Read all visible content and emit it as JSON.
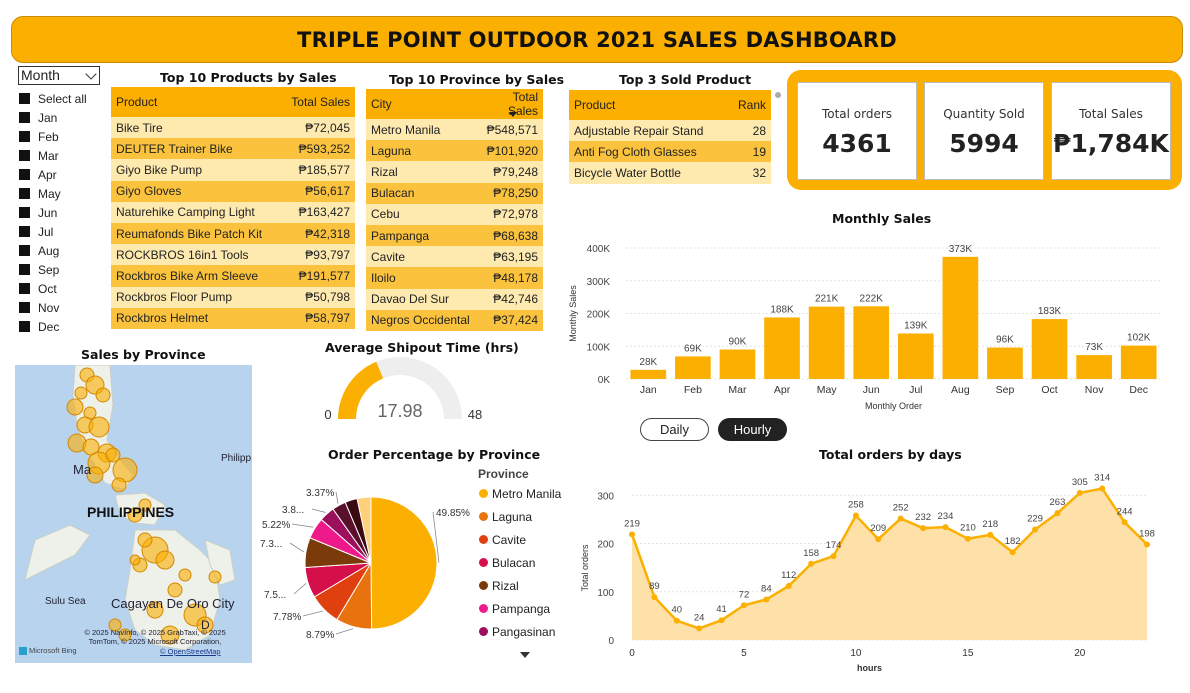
{
  "header": {
    "title": "TRIPLE POINT OUTDOOR 2021 SALES DASHBOARD"
  },
  "slicer": {
    "dropdown_value": "Month",
    "items": [
      "Select all",
      "Jan",
      "Feb",
      "Mar",
      "Apr",
      "May",
      "Jun",
      "Jul",
      "Aug",
      "Sep",
      "Oct",
      "Nov",
      "Dec"
    ]
  },
  "top_products": {
    "title": "Top 10 Products by Sales",
    "col1": "Product",
    "col2": "Total Sales",
    "rows": [
      {
        "name": "Bike Tire",
        "value": "₱72,045"
      },
      {
        "name": "DEUTER Trainer Bike",
        "value": "₱593,252"
      },
      {
        "name": "Giyo Bike Pump",
        "value": "₱185,577"
      },
      {
        "name": "Giyo Gloves",
        "value": "₱56,617"
      },
      {
        "name": "Naturehike Camping Light",
        "value": "₱163,427"
      },
      {
        "name": "Reumafonds Bike Patch Kit",
        "value": "₱42,318"
      },
      {
        "name": "ROCKBROS 16in1 Tools",
        "value": "₱93,797"
      },
      {
        "name": "Rockbros Bike Arm Sleeve",
        "value": "₱191,577"
      },
      {
        "name": "Rockbros Floor Pump",
        "value": "₱50,798"
      },
      {
        "name": "Rockbros Helmet",
        "value": "₱58,797"
      }
    ]
  },
  "top_province": {
    "title": "Top 10 Province by Sales",
    "col1": "City",
    "col2": "Total Sales",
    "rows": [
      {
        "name": "Metro Manila",
        "value": "₱548,571"
      },
      {
        "name": "Laguna",
        "value": "₱101,920"
      },
      {
        "name": "Rizal",
        "value": "₱79,248"
      },
      {
        "name": "Bulacan",
        "value": "₱78,250"
      },
      {
        "name": "Cebu",
        "value": "₱72,978"
      },
      {
        "name": "Pampanga",
        "value": "₱68,638"
      },
      {
        "name": "Cavite",
        "value": "₱63,195"
      },
      {
        "name": "Iloilo",
        "value": "₱48,178"
      },
      {
        "name": "Davao Del Sur",
        "value": "₱42,746"
      },
      {
        "name": "Negros Occidental",
        "value": "₱37,424"
      }
    ]
  },
  "top3": {
    "title": "Top 3 Sold Product",
    "col1": "Product",
    "col2": "Rank",
    "rows": [
      {
        "name": "Adjustable Repair Stand",
        "value": "28"
      },
      {
        "name": "Anti Fog Cloth Glasses",
        "value": "19"
      },
      {
        "name": "Bicycle Water Bottle",
        "value": "32"
      }
    ]
  },
  "kpis": [
    {
      "label": "Total orders",
      "value": "4361"
    },
    {
      "label": "Quantity Sold",
      "value": "5994"
    },
    {
      "label": "Total Sales",
      "value": "₱1,784K"
    }
  ],
  "map": {
    "title": "Sales by Province",
    "labels": {
      "country": "PHILIPPINES",
      "city": "Cagayan De Oro City",
      "sea": "Sulu Sea",
      "partial_a": "Ma",
      "partial_b": "Philipp",
      "partial_c": "D"
    },
    "attribution": "© 2025 NavInfo, © 2025 GrabTaxi, © 2025 TomTom, © 2025 Microsoft Corporation,",
    "terms": "© OpenStreetMap",
    "brand": "Microsoft Bing"
  },
  "gauge": {
    "title": "Average Shipout Time (hrs)",
    "value": 17.98,
    "min": 0,
    "max": 48,
    "value_text": "17.98",
    "min_text": "0",
    "max_text": "48",
    "fill_color": "#FBAF00",
    "track_color": "#eeeeee"
  },
  "toggle": {
    "options": [
      "Daily",
      "Hourly"
    ],
    "selected": "Hourly"
  },
  "pie_legend": {
    "title": "Province",
    "items": [
      {
        "name": "Metro Manila",
        "color": "#FBAF00"
      },
      {
        "name": "Laguna",
        "color": "#E8730E"
      },
      {
        "name": "Cavite",
        "color": "#E0400E"
      },
      {
        "name": "Bulacan",
        "color": "#D40F4A"
      },
      {
        "name": "Rizal",
        "color": "#7A3A0A"
      },
      {
        "name": "Pampanga",
        "color": "#EE1A8C"
      },
      {
        "name": "Pangasinan",
        "color": "#9C0F5C"
      }
    ]
  },
  "chart_data": [
    {
      "type": "bar",
      "title": "Monthly Sales",
      "xlabel": "Monthly Order",
      "ylabel": "Monthly Sales",
      "categories": [
        "Jan",
        "Feb",
        "Mar",
        "Apr",
        "May",
        "Jun",
        "Jul",
        "Aug",
        "Sep",
        "Oct",
        "Nov",
        "Dec"
      ],
      "values": [
        28,
        69,
        90,
        188,
        221,
        222,
        139,
        373,
        96,
        183,
        73,
        102
      ],
      "data_labels": [
        "28K",
        "69K",
        "90K",
        "188K",
        "221K",
        "222K",
        "139K",
        "373K",
        "96K",
        "183K",
        "73K",
        "102K"
      ],
      "yticks": [
        "0K",
        "100K",
        "200K",
        "300K",
        "400K"
      ],
      "ylim": [
        0,
        400
      ],
      "color": "#FBAF00",
      "grid": true
    },
    {
      "type": "area",
      "title": "Total orders by days",
      "xlabel": "hours",
      "ylabel": "Total orders",
      "x": [
        0,
        1,
        2,
        3,
        4,
        5,
        6,
        7,
        8,
        9,
        10,
        11,
        12,
        13,
        14,
        15,
        16,
        17,
        18,
        19,
        20,
        21,
        22,
        23
      ],
      "values": [
        219,
        89,
        40,
        24,
        41,
        72,
        84,
        112,
        158,
        174,
        258,
        209,
        252,
        232,
        234,
        210,
        218,
        182,
        229,
        263,
        305,
        314,
        244,
        198
      ],
      "xticks": [
        0,
        5,
        10,
        15,
        20
      ],
      "yticks": [
        0,
        100,
        200,
        300
      ],
      "ylim": [
        0,
        340
      ],
      "color": "#FBAF00",
      "grid": true
    },
    {
      "type": "pie",
      "title": "Order Percentage by Province",
      "slices": [
        {
          "name": "Metro Manila",
          "value": 49.85,
          "label": "49.85%",
          "color": "#FBAF00"
        },
        {
          "name": "Laguna",
          "value": 8.79,
          "label": "8.79%",
          "color": "#E8730E"
        },
        {
          "name": "Cavite",
          "value": 7.78,
          "label": "7.78%",
          "color": "#E0400E"
        },
        {
          "name": "Bulacan",
          "value": 7.5,
          "label": "7.5...",
          "color": "#D40F4A"
        },
        {
          "name": "Rizal",
          "value": 7.3,
          "label": "7.3...",
          "color": "#7A3A0A"
        },
        {
          "name": "Pampanga",
          "value": 5.22,
          "label": "5.22%",
          "color": "#EE1A8C"
        },
        {
          "name": "Pangasinan",
          "value": 3.8,
          "label": "3.8...",
          "color": "#9C0F5C"
        },
        {
          "name": "",
          "value": 3.37,
          "label": "3.37%",
          "color": "#5a0f2a"
        },
        {
          "name": "",
          "value": 3.0,
          "label": "",
          "color": "#3a0a10"
        },
        {
          "name": "",
          "value": 3.39,
          "label": "",
          "color": "#FDD07A"
        }
      ]
    }
  ]
}
